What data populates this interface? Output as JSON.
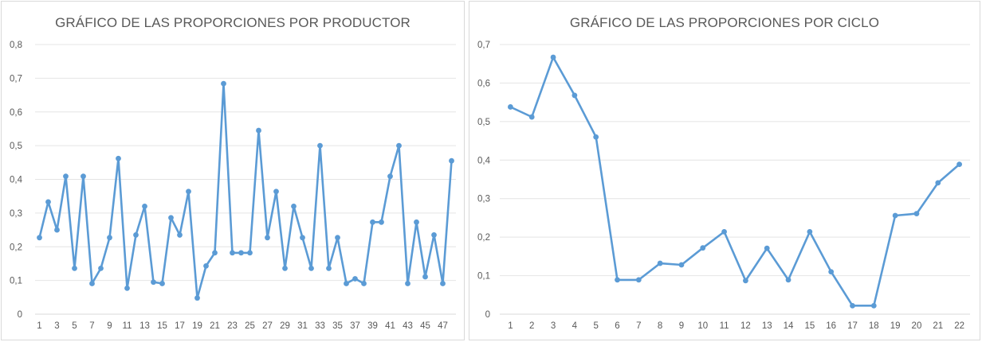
{
  "chart_data": [
    {
      "type": "line",
      "title": "GRÁFICO DE LAS PROPORCIONES POR PRODUCTOR",
      "xlabel": "",
      "ylabel": "",
      "ylim": [
        0,
        0.8
      ],
      "y_ticks": [
        "0",
        "0,1",
        "0,2",
        "0,3",
        "0,4",
        "0,5",
        "0,6",
        "0,7",
        "0,8"
      ],
      "x_tick_labels": [
        "1",
        "3",
        "5",
        "7",
        "9",
        "11",
        "13",
        "15",
        "17",
        "19",
        "21",
        "23",
        "25",
        "27",
        "29",
        "31",
        "33",
        "35",
        "37",
        "39",
        "41",
        "43",
        "45",
        "47"
      ],
      "x": [
        1,
        2,
        3,
        4,
        5,
        6,
        7,
        8,
        9,
        10,
        11,
        12,
        13,
        14,
        15,
        16,
        17,
        18,
        19,
        20,
        21,
        22,
        23,
        24,
        25,
        26,
        27,
        28,
        29,
        30,
        31,
        32,
        33,
        34,
        35,
        36,
        37,
        38,
        39,
        40,
        41,
        42,
        43,
        44,
        45,
        46,
        47,
        48
      ],
      "values": [
        0.227,
        0.333,
        0.25,
        0.409,
        0.136,
        0.409,
        0.091,
        0.136,
        0.227,
        0.462,
        0.077,
        0.235,
        0.32,
        0.095,
        0.091,
        0.286,
        0.235,
        0.364,
        0.048,
        0.143,
        0.182,
        0.684,
        0.182,
        0.182,
        0.182,
        0.545,
        0.227,
        0.364,
        0.136,
        0.32,
        0.227,
        0.136,
        0.5,
        0.136,
        0.227,
        0.091,
        0.105,
        0.091,
        0.273,
        0.273,
        0.409,
        0.5,
        0.091,
        0.273,
        0.111,
        0.235,
        0.091,
        0.455
      ],
      "grid": true,
      "color": "#5b9bd5"
    },
    {
      "type": "line",
      "title": "GRÁFICO DE LAS PROPORCIONES POR CICLO",
      "xlabel": "",
      "ylabel": "",
      "ylim": [
        0,
        0.7
      ],
      "y_ticks": [
        "0",
        "0,1",
        "0,2",
        "0,3",
        "0,4",
        "0,5",
        "0,6",
        "0,7"
      ],
      "x_tick_labels": [
        "1",
        "2",
        "3",
        "4",
        "5",
        "6",
        "7",
        "8",
        "9",
        "10",
        "11",
        "12",
        "13",
        "14",
        "15",
        "16",
        "17",
        "18",
        "19",
        "20",
        "21",
        "22"
      ],
      "x": [
        1,
        2,
        3,
        4,
        5,
        6,
        7,
        8,
        9,
        10,
        11,
        12,
        13,
        14,
        15,
        16,
        17,
        18,
        19,
        20,
        21,
        22
      ],
      "values": [
        0.538,
        0.512,
        0.667,
        0.568,
        0.46,
        0.089,
        0.089,
        0.132,
        0.128,
        0.172,
        0.214,
        0.087,
        0.171,
        0.089,
        0.214,
        0.11,
        0.022,
        0.022,
        0.256,
        0.261,
        0.341,
        0.389
      ],
      "grid": true,
      "color": "#5b9bd5"
    }
  ]
}
